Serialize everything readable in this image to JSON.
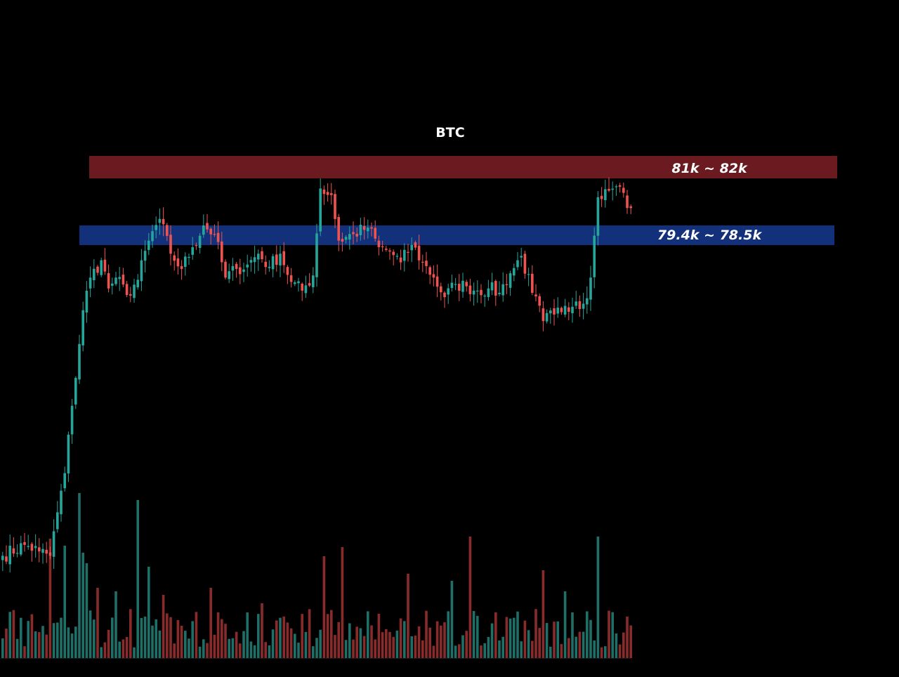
{
  "chart_data": {
    "type": "candlestick",
    "title": "BTC",
    "xlabel": "",
    "ylabel": "",
    "grid": false,
    "legend": "none",
    "ylim": [
      62000,
      83200
    ],
    "colors": {
      "up": "#26a69a",
      "down": "#ef5350",
      "volume_up": "#1e6f67",
      "volume_down": "#8a2b2b",
      "resistance_zone": "#6b1a1f",
      "support_zone": "#13317a",
      "background": "#000000"
    },
    "zones": [
      {
        "label": "81k ~ 82k",
        "low": 81000,
        "high": 82000,
        "color": "#6b1a1f"
      },
      {
        "label": "79.4k ~ 78.5k",
        "low": 78500,
        "high": 79400,
        "color": "#13317a"
      }
    ],
    "price_anchors": [
      [
        0,
        64800
      ],
      [
        6,
        65300
      ],
      [
        10,
        65000
      ],
      [
        13,
        64800
      ],
      [
        15,
        66800
      ],
      [
        17,
        68600
      ],
      [
        19,
        71700
      ],
      [
        22,
        76100
      ],
      [
        24,
        77600
      ],
      [
        27,
        78400
      ],
      [
        29,
        77100
      ],
      [
        31,
        77600
      ],
      [
        34,
        76800
      ],
      [
        37,
        77500
      ],
      [
        40,
        79300
      ],
      [
        43,
        80300
      ],
      [
        46,
        78700
      ],
      [
        49,
        78000
      ],
      [
        52,
        79000
      ],
      [
        55,
        80000
      ],
      [
        58,
        79600
      ],
      [
        61,
        77600
      ],
      [
        64,
        78000
      ],
      [
        67,
        78200
      ],
      [
        70,
        78700
      ],
      [
        73,
        78100
      ],
      [
        76,
        78700
      ],
      [
        79,
        77400
      ],
      [
        82,
        77000
      ],
      [
        85,
        77700
      ],
      [
        87,
        81700
      ],
      [
        90,
        81400
      ],
      [
        92,
        79300
      ],
      [
        96,
        79600
      ],
      [
        100,
        79900
      ],
      [
        103,
        79000
      ],
      [
        106,
        78800
      ],
      [
        109,
        78300
      ],
      [
        112,
        79100
      ],
      [
        115,
        78300
      ],
      [
        118,
        77600
      ],
      [
        121,
        76700
      ],
      [
        124,
        77300
      ],
      [
        127,
        77200
      ],
      [
        130,
        77000
      ],
      [
        133,
        77100
      ],
      [
        136,
        76900
      ],
      [
        139,
        77800
      ],
      [
        142,
        78600
      ],
      [
        145,
        76900
      ],
      [
        148,
        75600
      ],
      [
        151,
        75900
      ],
      [
        154,
        76300
      ],
      [
        157,
        76500
      ],
      [
        159,
        76400
      ],
      [
        161,
        77600
      ],
      [
        163,
        81300
      ],
      [
        166,
        81600
      ],
      [
        168,
        81800
      ],
      [
        170,
        81500
      ],
      [
        171,
        80800
      ],
      [
        172,
        80800
      ]
    ]
  }
}
